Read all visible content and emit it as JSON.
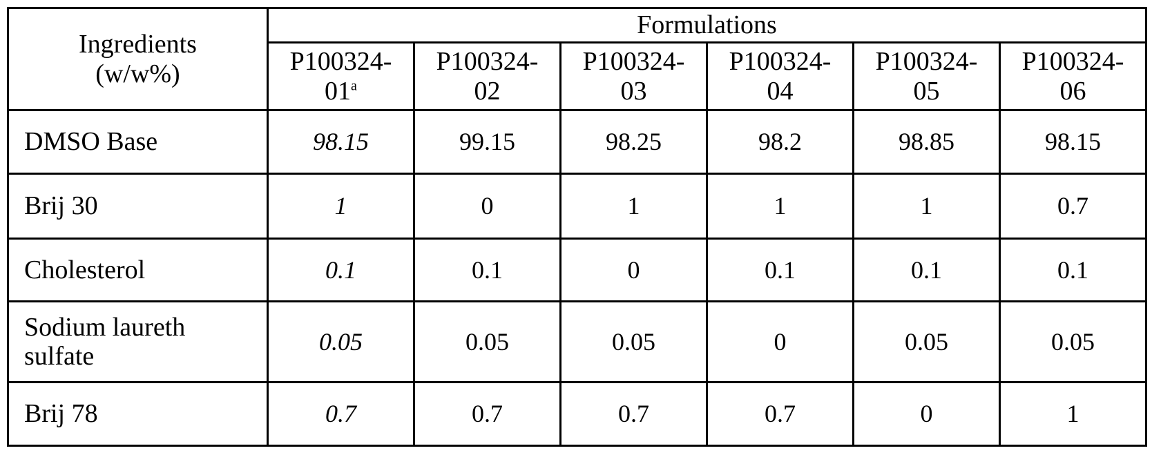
{
  "table": {
    "ingredients_header_line1": "Ingredients",
    "ingredients_header_line2": "(w/w%)",
    "formulations_header": "Formulations",
    "columns": [
      {
        "line1": "P100324-",
        "line2": "01",
        "superscript": "a"
      },
      {
        "line1": "P100324-",
        "line2": "02",
        "superscript": ""
      },
      {
        "line1": "P100324-",
        "line2": "03",
        "superscript": ""
      },
      {
        "line1": "P100324-",
        "line2": "04",
        "superscript": ""
      },
      {
        "line1": "P100324-",
        "line2": "05",
        "superscript": ""
      },
      {
        "line1": "P100324-",
        "line2": "06",
        "superscript": ""
      }
    ],
    "rows": [
      {
        "name_line1": "DMSO Base",
        "name_line2": "",
        "values": [
          "98.15",
          "99.15",
          "98.25",
          "98.2",
          "98.85",
          "98.15"
        ],
        "styles": [
          "bold-italic",
          "",
          "",
          "",
          "",
          ""
        ]
      },
      {
        "name_line1": "Brij 30",
        "name_line2": "",
        "values": [
          "1",
          "0",
          "1",
          "1",
          "1",
          "0.7"
        ],
        "styles": [
          "bold-italic",
          "bold",
          "",
          "",
          "",
          "bold"
        ]
      },
      {
        "name_line1": "Cholesterol",
        "name_line2": "",
        "values": [
          "0.1",
          "0.1",
          "0",
          "0.1",
          "0.1",
          "0.1"
        ],
        "styles": [
          "bold-italic",
          "",
          "bold",
          "",
          "",
          ""
        ]
      },
      {
        "name_line1": "Sodium laureth",
        "name_line2": "sulfate",
        "values": [
          "0.05",
          "0.05",
          "0.05",
          "0",
          "0.05",
          "0.05"
        ],
        "styles": [
          "bold-italic",
          "",
          "",
          "bold",
          "",
          ""
        ]
      },
      {
        "name_line1": "Brij 78",
        "name_line2": "",
        "values": [
          "0.7",
          "0.7",
          "0.7",
          "0.7",
          "0",
          "1"
        ],
        "styles": [
          "bold-italic",
          "",
          "",
          "",
          "bold",
          "bold"
        ]
      }
    ]
  }
}
